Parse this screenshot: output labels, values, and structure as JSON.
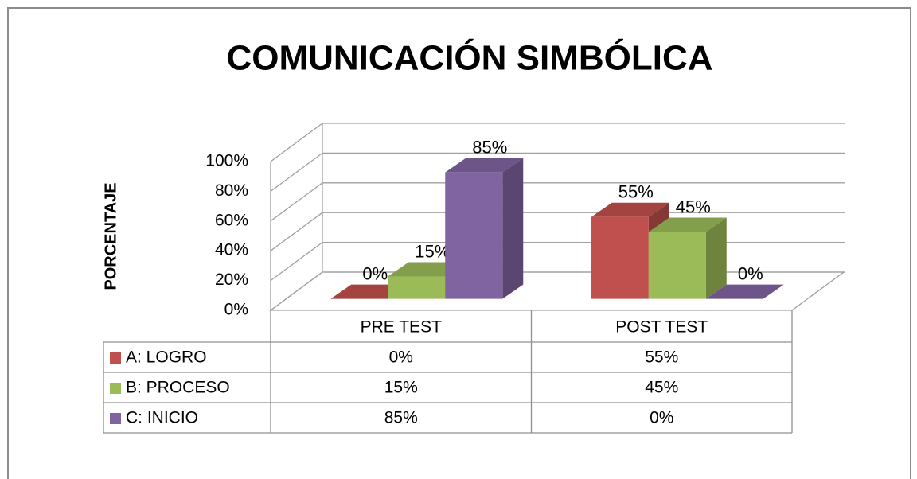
{
  "chart_data": {
    "type": "bar3d",
    "title": "COMUNICACIÓN SIMBÓLICA",
    "y_label": "PORCENTAJE",
    "categories": [
      "PRE TEST",
      "POST TEST"
    ],
    "series": [
      {
        "name": "A: LOGRO",
        "color": "#c0504d",
        "values": [
          0,
          55
        ],
        "value_labels": [
          "0%",
          "55%"
        ]
      },
      {
        "name": "B: PROCESO",
        "color": "#9bbb59",
        "values": [
          15,
          45
        ],
        "value_labels": [
          "15%",
          "45%"
        ]
      },
      {
        "name": "C: INICIO",
        "color": "#8064a2",
        "values": [
          85,
          0
        ],
        "value_labels": [
          "85%",
          "0%"
        ]
      }
    ],
    "ylim": [
      0,
      100
    ],
    "yticks": [
      {
        "value": 0,
        "label": "0%"
      },
      {
        "value": 20,
        "label": "20%"
      },
      {
        "value": 40,
        "label": "40%"
      },
      {
        "value": 60,
        "label": "60%"
      },
      {
        "value": 80,
        "label": "80%"
      },
      {
        "value": 100,
        "label": "100%"
      }
    ],
    "grid": true
  }
}
